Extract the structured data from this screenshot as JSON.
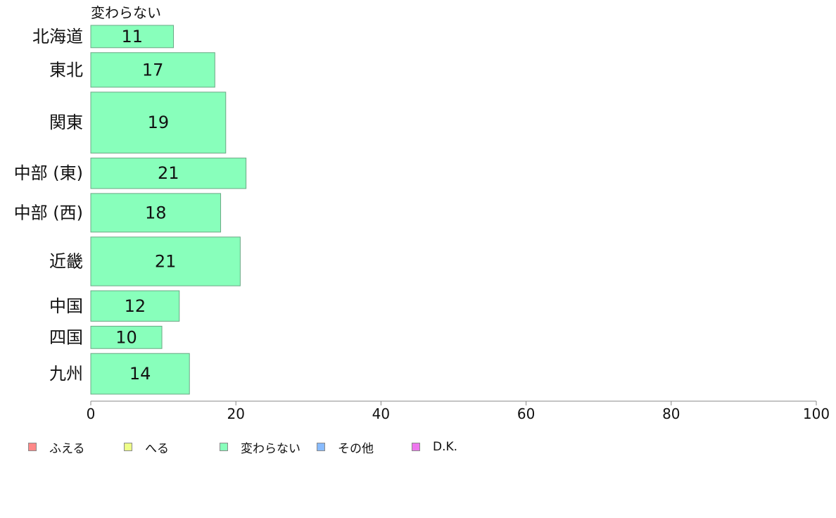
{
  "chart_data": {
    "type": "bar",
    "orientation": "horizontal",
    "series_label": "変わらない",
    "categories": [
      "北海道",
      "東北",
      "関東",
      "中部 (東)",
      "中部 (西)",
      "近畿",
      "中国",
      "四国",
      "九州"
    ],
    "values": [
      11.4,
      17.1,
      18.6,
      21.4,
      17.9,
      20.6,
      12.2,
      9.8,
      13.6
    ],
    "data_labels": [
      "11",
      "17",
      "19",
      "21",
      "18",
      "21",
      "12",
      "10",
      "14"
    ],
    "relative_bar_widths": [
      0.55,
      0.85,
      1.5,
      0.75,
      0.95,
      1.2,
      0.75,
      0.55,
      1.0
    ],
    "series_color": "#88ffbb",
    "bar_border_color": "#6aa884",
    "xlim": [
      0,
      100
    ],
    "x_ticks": [
      0,
      20,
      40,
      60,
      80,
      100
    ],
    "grid": false,
    "legend_position": "bottom-left",
    "legend": [
      {
        "label": "ふえる",
        "color": "#ff8888"
      },
      {
        "label": "へる",
        "color": "#eeff88"
      },
      {
        "label": "変わらない",
        "color": "#88ffbb"
      },
      {
        "label": "その他",
        "color": "#88bbff"
      },
      {
        "label": "D.K.",
        "color": "#ee77ee"
      }
    ]
  }
}
